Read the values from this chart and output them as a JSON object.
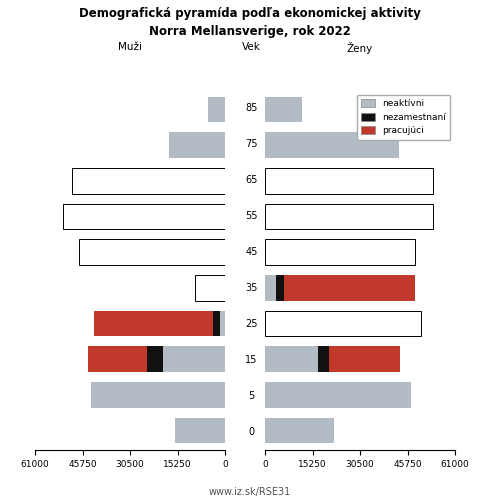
{
  "title_line1": "Demografická pyramída podľa ekonomickej aktivity",
  "title_line2": "Norra Mellansverige, rok 2022",
  "xlabel_left": "Muži",
  "xlabel_center": "Vek",
  "xlabel_right": "Ženy",
  "footer": "www.iz.sk/RSE31",
  "age_labels": [
    0,
    5,
    15,
    25,
    35,
    45,
    55,
    65,
    75,
    85
  ],
  "colors": {
    "neaktivni": "#b3bcc5",
    "nezamestnani": "#111111",
    "pracujuci": "#c0392b"
  },
  "xlim": 61000,
  "men": {
    "neaktivni": [
      16000,
      43000,
      20000,
      1500,
      9500,
      47000,
      52000,
      49000,
      18000,
      5500
    ],
    "nezamestnani": [
      0,
      0,
      5000,
      2500,
      0,
      0,
      0,
      0,
      0,
      0
    ],
    "pracujuci": [
      0,
      0,
      19000,
      38000,
      0,
      0,
      0,
      0,
      0,
      0
    ],
    "outlined": [
      false,
      false,
      false,
      false,
      true,
      true,
      true,
      true,
      false,
      false
    ]
  },
  "women": {
    "neaktivni": [
      22000,
      47000,
      17000,
      50000,
      3500,
      48000,
      54000,
      54000,
      43000,
      12000
    ],
    "nezamestnani": [
      0,
      0,
      3500,
      0,
      2500,
      0,
      0,
      0,
      0,
      0
    ],
    "pracujuci": [
      0,
      0,
      23000,
      0,
      42000,
      0,
      0,
      0,
      0,
      0
    ],
    "outlined": [
      false,
      false,
      false,
      true,
      false,
      true,
      true,
      true,
      false,
      false
    ]
  }
}
